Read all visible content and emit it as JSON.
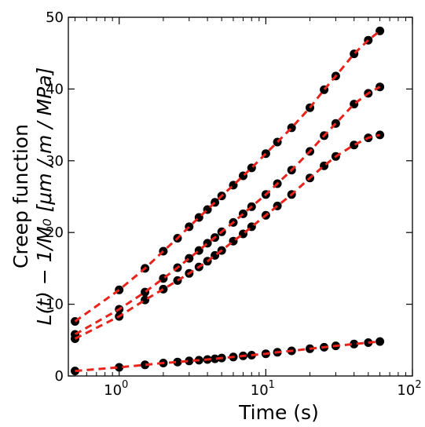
{
  "chart_data": {
    "type": "scatter",
    "xscale": "log",
    "xlim": [
      0.45,
      100
    ],
    "ylim": [
      0,
      50
    ],
    "xlabel": "Time (s)",
    "ylabel_line1": "Creep function",
    "ylabel_line2": "L(t) − 1/M₀ [μm / m / MPa]",
    "xticks": [
      {
        "value": 1,
        "base": "10",
        "exp": "0"
      },
      {
        "value": 10,
        "base": "10",
        "exp": "1"
      },
      {
        "value": 100,
        "base": "10",
        "exp": "2"
      }
    ],
    "yticks": [
      0,
      10,
      20,
      30,
      40,
      50
    ],
    "grid": false,
    "marker_color": "#000000",
    "fit_color": "#e8231c",
    "fit_style": "dashed",
    "series": [
      {
        "x": [
          0.5,
          1,
          1.5,
          2,
          2.5,
          3,
          3.5,
          4,
          4.5,
          5,
          6,
          7,
          8,
          10,
          12,
          15,
          20,
          25,
          30,
          40,
          50,
          60
        ],
        "y": [
          7.6,
          12.0,
          15.0,
          17.4,
          19.2,
          20.8,
          22.1,
          23.2,
          24.2,
          25.1,
          26.6,
          27.9,
          29.0,
          31.0,
          32.6,
          34.6,
          37.4,
          39.9,
          41.8,
          44.9,
          46.8,
          48.1
        ]
      },
      {
        "x": [
          0.5,
          1,
          1.5,
          2,
          2.5,
          3,
          3.5,
          4,
          4.5,
          5,
          6,
          7,
          8,
          10,
          12,
          15,
          20,
          25,
          30,
          40,
          50,
          60
        ],
        "y": [
          5.8,
          9.3,
          11.7,
          13.6,
          15.1,
          16.4,
          17.5,
          18.5,
          19.3,
          20.1,
          21.4,
          22.6,
          23.6,
          25.3,
          26.8,
          28.7,
          31.3,
          33.5,
          35.2,
          37.9,
          39.4,
          40.3
        ]
      },
      {
        "x": [
          0.5,
          1,
          1.5,
          2,
          2.5,
          3,
          3.5,
          4,
          4.5,
          5,
          6,
          7,
          8,
          10,
          12,
          15,
          20,
          25,
          30,
          40,
          50,
          60
        ],
        "y": [
          5.2,
          8.3,
          10.6,
          12.1,
          13.3,
          14.3,
          15.2,
          16.0,
          16.8,
          17.5,
          18.8,
          19.8,
          20.8,
          22.4,
          23.7,
          25.3,
          27.6,
          29.3,
          30.6,
          32.2,
          33.2,
          33.6
        ]
      },
      {
        "x": [
          0.5,
          1,
          1.5,
          2,
          2.5,
          3,
          3.5,
          4,
          4.5,
          5,
          6,
          7,
          8,
          10,
          12,
          15,
          20,
          25,
          30,
          40,
          50,
          60
        ],
        "y": [
          0.7,
          1.2,
          1.55,
          1.8,
          1.95,
          2.1,
          2.2,
          2.3,
          2.4,
          2.5,
          2.65,
          2.8,
          2.9,
          3.1,
          3.3,
          3.5,
          3.8,
          4.0,
          4.2,
          4.45,
          4.65,
          4.8
        ]
      }
    ]
  }
}
